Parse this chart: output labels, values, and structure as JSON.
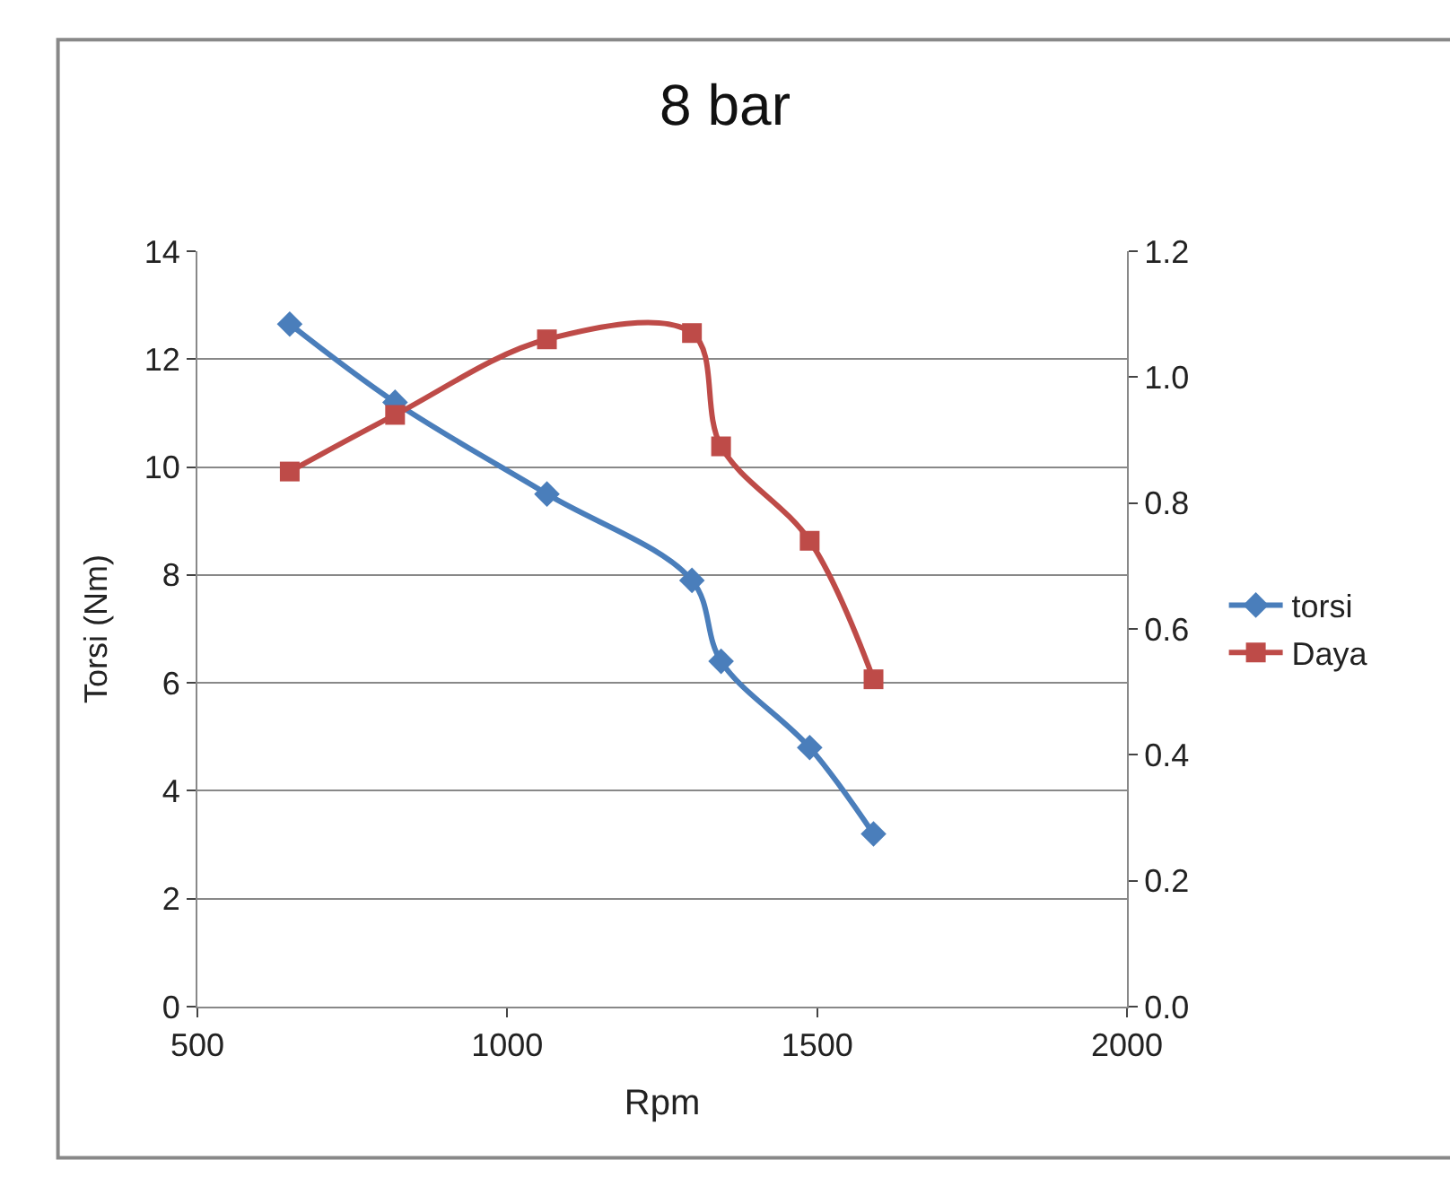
{
  "chart_data": {
    "type": "line",
    "title": "8 bar",
    "xlabel": "Rpm",
    "ylabel": "Torsi (Nm)",
    "x": [
      649,
      819,
      1064,
      1298,
      1345,
      1488,
      1591
    ],
    "series": [
      {
        "name": "torsi",
        "color": "#4a7ebb",
        "marker": "diamond",
        "values": [
          12.65,
          11.2,
          9.5,
          7.9,
          6.4,
          4.8,
          3.2
        ]
      },
      {
        "name": "Daya",
        "color": "#be4b48",
        "marker": "square",
        "axis": "y2",
        "values": [
          0.85,
          0.94,
          1.06,
          1.07,
          0.89,
          0.74,
          0.52
        ]
      }
    ],
    "xlim": [
      500,
      2000
    ],
    "xticks": [
      500,
      1000,
      1500,
      2000
    ],
    "ylim": [
      0,
      14
    ],
    "yticks": [
      0,
      2,
      4,
      6,
      8,
      10,
      12,
      14
    ],
    "y2lim": [
      0,
      1.2
    ],
    "y2ticks": [
      {
        "value": 0,
        "label": "0.0"
      },
      {
        "value": 0.2,
        "label": "0.2"
      },
      {
        "value": 0.4,
        "label": "0.4"
      },
      {
        "value": 0.6,
        "label": "0.6"
      },
      {
        "value": 0.8,
        "label": "0.8"
      },
      {
        "value": 1.0,
        "label": "1.0"
      },
      {
        "value": 1.2,
        "label": "1.2"
      }
    ],
    "grid": "y",
    "legend": "right",
    "line_style": "solid"
  }
}
